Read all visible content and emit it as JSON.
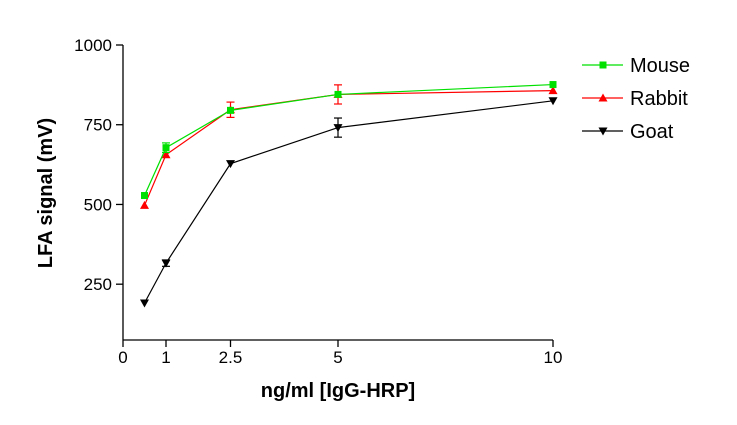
{
  "chart_data": {
    "type": "line",
    "title": "",
    "xlabel": "ng/ml [IgG-HRP]",
    "ylabel": "LFA signal (mV)",
    "x_ticks": [
      0,
      1,
      2.5,
      5,
      10
    ],
    "x_tick_labels": [
      "0",
      "1",
      "2.5",
      "5",
      "10"
    ],
    "y_ticks": [
      250,
      500,
      750,
      1000
    ],
    "y_tick_labels": [
      "250",
      "500",
      "750",
      "1000"
    ],
    "xlim": [
      0,
      10
    ],
    "ylim": [
      75,
      1000
    ],
    "grid": false,
    "legend_position": "right",
    "x": [
      0.5,
      1,
      2.5,
      5,
      10
    ],
    "series": [
      {
        "name": "Mouse",
        "color": "#00e000",
        "marker": "square",
        "values": [
          528,
          678,
          795,
          845,
          876
        ],
        "errors": [
          0,
          15,
          0,
          0,
          0
        ]
      },
      {
        "name": "Rabbit",
        "color": "#ff0000",
        "marker": "triangle-up",
        "values": [
          497,
          656,
          797,
          845,
          857
        ],
        "errors": [
          0,
          0,
          24,
          30,
          0
        ]
      },
      {
        "name": "Goat",
        "color": "#000000",
        "marker": "triangle-down",
        "values": [
          191,
          316,
          628,
          741,
          825
        ],
        "errors": [
          0,
          10,
          0,
          30,
          0
        ]
      }
    ]
  }
}
